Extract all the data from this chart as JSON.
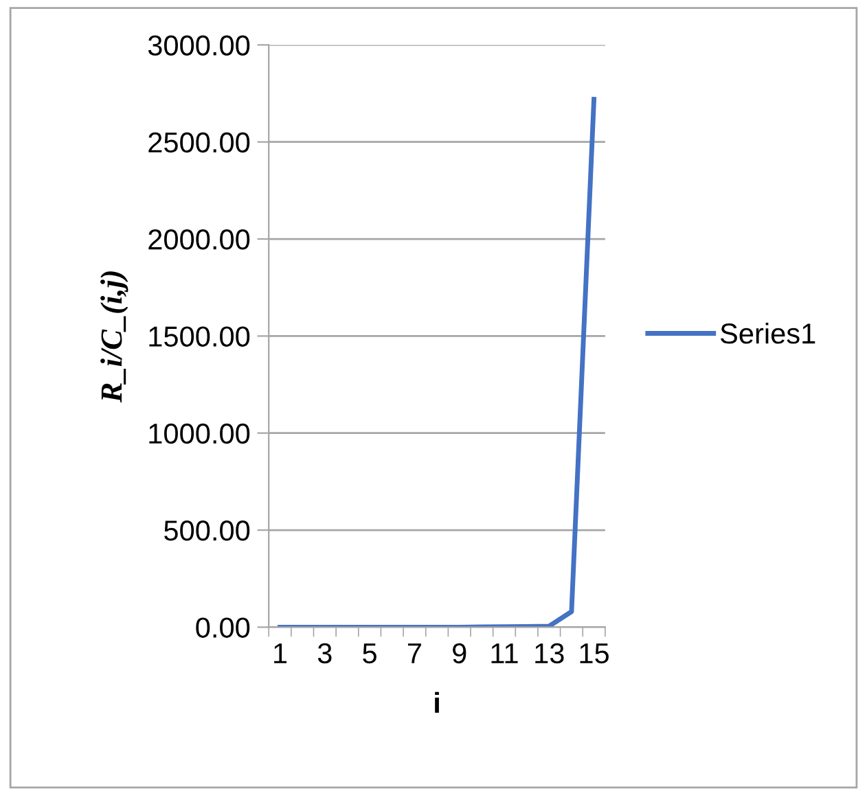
{
  "chart_data": {
    "type": "line",
    "xlabel": "i",
    "ylabel": "R_i/C_(i,j)",
    "categories": [
      "1",
      null,
      "3",
      null,
      "5",
      null,
      "7",
      null,
      "9",
      null,
      "11",
      null,
      "13",
      null,
      "15"
    ],
    "series": [
      {
        "name": "Series1",
        "color": "#4472c4",
        "values": [
          0,
          0,
          0,
          0,
          0,
          0,
          0,
          0,
          0,
          1,
          2,
          3,
          5,
          80,
          2720
        ]
      }
    ],
    "ylim": [
      0,
      3000
    ],
    "yticks": [
      {
        "value": 0,
        "label": "0.00"
      },
      {
        "value": 500,
        "label": "500.00"
      },
      {
        "value": 1000,
        "label": "1000.00"
      },
      {
        "value": 1500,
        "label": "1500.00"
      },
      {
        "value": 2000,
        "label": "2000.00"
      },
      {
        "value": 2500,
        "label": "2500.00"
      },
      {
        "value": 3000,
        "label": "3000.00"
      }
    ],
    "grid": "y",
    "legend": "right",
    "marker": "none",
    "line_style": "solid"
  }
}
